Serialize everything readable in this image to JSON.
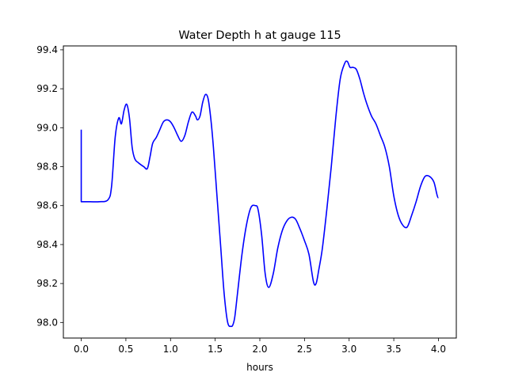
{
  "chart_data": {
    "type": "line",
    "title": "Water Depth h at gauge 115",
    "xlabel": "hours",
    "ylabel": "",
    "xlim": [
      -0.2,
      4.2
    ],
    "ylim": [
      97.92,
      99.42
    ],
    "grid": false,
    "x_ticks": [
      0.0,
      0.5,
      1.0,
      1.5,
      2.0,
      2.5,
      3.0,
      3.5,
      4.0
    ],
    "x_tick_labels": [
      "0.0",
      "0.5",
      "1.0",
      "1.5",
      "2.0",
      "2.5",
      "3.0",
      "3.5",
      "4.0"
    ],
    "y_ticks": [
      98.0,
      98.2,
      98.4,
      98.6,
      98.8,
      99.0,
      99.2,
      99.4
    ],
    "y_tick_labels": [
      "98.0",
      "98.2",
      "98.4",
      "98.6",
      "98.8",
      "99.0",
      "99.2",
      "99.4"
    ],
    "series": [
      {
        "color": "#0000ff",
        "x": [
          0.0,
          0.0,
          0.1,
          0.2,
          0.3,
          0.34,
          0.38,
          0.42,
          0.45,
          0.48,
          0.51,
          0.54,
          0.57,
          0.6,
          0.64,
          0.7,
          0.74,
          0.77,
          0.8,
          0.84,
          0.88,
          0.92,
          0.96,
          1.0,
          1.04,
          1.08,
          1.12,
          1.16,
          1.2,
          1.24,
          1.28,
          1.3,
          1.33,
          1.36,
          1.39,
          1.42,
          1.45,
          1.48,
          1.52,
          1.56,
          1.6,
          1.64,
          1.68,
          1.7,
          1.72,
          1.75,
          1.8,
          1.85,
          1.9,
          1.95,
          1.98,
          2.02,
          2.06,
          2.1,
          2.15,
          2.2,
          2.25,
          2.3,
          2.35,
          2.4,
          2.45,
          2.5,
          2.55,
          2.6,
          2.63,
          2.66,
          2.7,
          2.75,
          2.8,
          2.85,
          2.9,
          2.95,
          2.98,
          3.01,
          3.04,
          3.08,
          3.12,
          3.16,
          3.2,
          3.25,
          3.3,
          3.35,
          3.4,
          3.45,
          3.5,
          3.55,
          3.6,
          3.65,
          3.7,
          3.75,
          3.8,
          3.85,
          3.9,
          3.95,
          4.0
        ],
        "y": [
          98.99,
          98.62,
          98.62,
          98.62,
          98.63,
          98.7,
          98.95,
          99.05,
          99.02,
          99.09,
          99.12,
          99.05,
          98.9,
          98.84,
          98.82,
          98.8,
          98.79,
          98.85,
          98.92,
          98.95,
          98.99,
          99.03,
          99.04,
          99.03,
          99.0,
          98.96,
          98.93,
          98.96,
          99.03,
          99.08,
          99.06,
          99.04,
          99.06,
          99.13,
          99.17,
          99.15,
          99.05,
          98.9,
          98.65,
          98.4,
          98.15,
          98.0,
          97.98,
          97.99,
          98.03,
          98.15,
          98.35,
          98.5,
          98.59,
          98.6,
          98.58,
          98.45,
          98.25,
          98.18,
          98.25,
          98.38,
          98.47,
          98.52,
          98.54,
          98.53,
          98.48,
          98.42,
          98.35,
          98.21,
          98.2,
          98.27,
          98.38,
          98.58,
          98.8,
          99.05,
          99.25,
          99.33,
          99.34,
          99.31,
          99.31,
          99.3,
          99.25,
          99.18,
          99.12,
          99.06,
          99.02,
          98.96,
          98.9,
          98.8,
          98.65,
          98.55,
          98.5,
          98.49,
          98.55,
          98.62,
          98.7,
          98.75,
          98.75,
          98.72,
          98.64
        ]
      }
    ]
  }
}
